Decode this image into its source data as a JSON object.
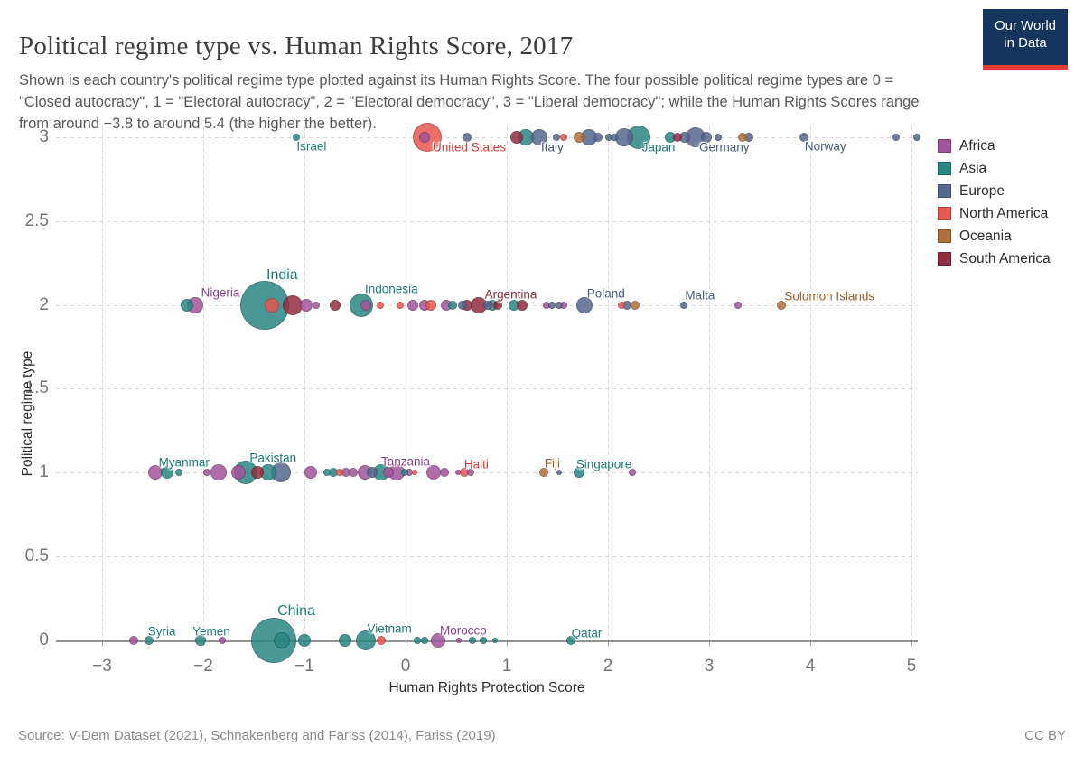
{
  "header": {
    "title": "Political regime type vs. Human Rights Score, 2017",
    "subtitle": "Shown is each country's political regime type plotted against its Human Rights Score. The four possible political regime types are 0 = \"Closed autocracy\", 1 = \"Electoral autocracy\", 2 = \"Electoral democracy\", 3 = \"Liberal democracy\"; while the Human Rights Scores range from around −3.8 to around 5.4 (the higher the better)."
  },
  "logo": {
    "line1": "Our World",
    "line2": "in Data"
  },
  "footer": {
    "source": "Source: V-Dem Dataset (2021), Schnakenberg and Fariss (2014), Fariss (2019)",
    "license": "CC BY"
  },
  "chart_data": {
    "type": "scatter",
    "title": "Political regime type vs. Human Rights Score, 2017",
    "xlabel": "Human Rights Protection Score",
    "ylabel": "Political regime type",
    "xlim": [
      -3.45,
      5.2
    ],
    "ylim": [
      0,
      3
    ],
    "x_ticks": [
      -3,
      -2,
      -1,
      0,
      1,
      2,
      3,
      4,
      5
    ],
    "y_ticks": [
      3,
      2.5,
      2,
      1.5,
      1,
      0.5,
      0
    ],
    "grid": true,
    "legend_position": "right",
    "y_meaning": {
      "0": "Closed autocracy",
      "1": "Electoral autocracy",
      "2": "Electoral democracy",
      "3": "Liberal democracy"
    },
    "series": [
      {
        "name": "Africa",
        "color": "#a2559c",
        "labelColor": "#8d4090",
        "points": [
          [
            0.19,
            3,
            6
          ],
          [
            -2.08,
            2,
            9
          ],
          [
            -0.98,
            2,
            7
          ],
          [
            -0.88,
            2,
            4
          ],
          [
            -0.39,
            2,
            6
          ],
          [
            0.07,
            2,
            6
          ],
          [
            0.19,
            2,
            6
          ],
          [
            0.4,
            2,
            6
          ],
          [
            1.39,
            2,
            4
          ],
          [
            1.56,
            2,
            4
          ],
          [
            3.29,
            2,
            4
          ],
          [
            -2.47,
            1,
            8
          ],
          [
            -1.96,
            1,
            4
          ],
          [
            -1.85,
            1,
            9
          ],
          [
            -1.65,
            1,
            8
          ],
          [
            -0.94,
            1,
            7
          ],
          [
            -0.59,
            1,
            5
          ],
          [
            -0.52,
            1,
            5
          ],
          [
            -0.4,
            1,
            8
          ],
          [
            -0.17,
            1,
            6
          ],
          [
            -0.09,
            1,
            9
          ],
          [
            0.04,
            1,
            4
          ],
          [
            0.28,
            1,
            8
          ],
          [
            0.38,
            1,
            5
          ],
          [
            0.52,
            1,
            3
          ],
          [
            0.64,
            1,
            4
          ],
          [
            2.24,
            1,
            4
          ],
          [
            -2.69,
            0,
            5
          ],
          [
            -1.81,
            0,
            4
          ],
          [
            0.32,
            0,
            8
          ],
          [
            0.53,
            0,
            3
          ]
        ]
      },
      {
        "name": "Asia",
        "color": "#2a8784",
        "labelColor": "#1d7c77",
        "points": [
          [
            -1.08,
            3,
            4
          ],
          [
            1.19,
            3,
            9
          ],
          [
            2.3,
            3,
            13
          ],
          [
            2.62,
            3,
            6
          ],
          [
            -2.16,
            2,
            7
          ],
          [
            -1.39,
            2,
            27
          ],
          [
            -0.44,
            2,
            13
          ],
          [
            0.46,
            2,
            5
          ],
          [
            0.86,
            2,
            6
          ],
          [
            1.07,
            2,
            6
          ],
          [
            -2.36,
            1,
            7
          ],
          [
            -2.24,
            1,
            4
          ],
          [
            -1.58,
            1,
            13
          ],
          [
            -1.36,
            1,
            9
          ],
          [
            -0.78,
            1,
            4
          ],
          [
            -0.71,
            1,
            5
          ],
          [
            -0.24,
            1,
            9
          ],
          [
            -0.01,
            1,
            4
          ],
          [
            1.71,
            1,
            6
          ],
          [
            -2.54,
            0,
            5
          ],
          [
            -2.03,
            0,
            6
          ],
          [
            -1.3,
            0,
            25
          ],
          [
            -1.22,
            0,
            9
          ],
          [
            -1.0,
            0,
            7
          ],
          [
            -0.6,
            0,
            7
          ],
          [
            -0.39,
            0,
            11
          ],
          [
            0.12,
            0,
            4
          ],
          [
            0.19,
            0,
            4
          ],
          [
            0.66,
            0,
            4
          ],
          [
            0.77,
            0,
            4
          ],
          [
            0.88,
            0,
            3
          ],
          [
            1.63,
            0,
            5
          ]
        ]
      },
      {
        "name": "Europe",
        "color": "#56678f",
        "labelColor": "#47597f",
        "points": [
          [
            0.61,
            3,
            5
          ],
          [
            1.32,
            3,
            9
          ],
          [
            1.49,
            3,
            4
          ],
          [
            1.81,
            3,
            9
          ],
          [
            1.9,
            3,
            5
          ],
          [
            2.01,
            3,
            4
          ],
          [
            2.06,
            3,
            4
          ],
          [
            2.16,
            3,
            10
          ],
          [
            2.76,
            3,
            6
          ],
          [
            2.87,
            3,
            11
          ],
          [
            2.97,
            3,
            6
          ],
          [
            3.09,
            3,
            4
          ],
          [
            3.39,
            3,
            5
          ],
          [
            3.94,
            3,
            5
          ],
          [
            4.85,
            3,
            4
          ],
          [
            5.05,
            3,
            4
          ],
          [
            0.56,
            2,
            5
          ],
          [
            0.81,
            2,
            5
          ],
          [
            1.45,
            2,
            4
          ],
          [
            1.52,
            2,
            4
          ],
          [
            1.77,
            2,
            9
          ],
          [
            2.19,
            2,
            5
          ],
          [
            2.75,
            2,
            4
          ],
          [
            -1.23,
            1,
            11
          ],
          [
            -0.33,
            1,
            6
          ],
          [
            1.52,
            1,
            3
          ]
        ]
      },
      {
        "name": "North America",
        "color": "#e8584f",
        "labelColor": "#d73a39",
        "points": [
          [
            0.21,
            3,
            16
          ],
          [
            1.56,
            3,
            4
          ],
          [
            -1.32,
            2,
            8
          ],
          [
            -0.25,
            2,
            4
          ],
          [
            -0.05,
            2,
            4
          ],
          [
            0.25,
            2,
            6
          ],
          [
            2.13,
            2,
            4
          ],
          [
            -0.65,
            1,
            4
          ],
          [
            0.09,
            1,
            3
          ],
          [
            0.58,
            1,
            5
          ],
          [
            -0.24,
            0,
            5
          ]
        ]
      },
      {
        "name": "Oceania",
        "color": "#b0703a",
        "labelColor": "#9c5f28",
        "points": [
          [
            1.71,
            3,
            6
          ],
          [
            3.33,
            3,
            5
          ],
          [
            2.27,
            2,
            5
          ],
          [
            3.71,
            2,
            5
          ],
          [
            1.37,
            1,
            5
          ]
        ]
      },
      {
        "name": "South America",
        "color": "#932d41",
        "labelColor": "#8c2a3c",
        "points": [
          [
            1.1,
            3,
            7
          ],
          [
            2.69,
            3,
            5
          ],
          [
            -1.12,
            2,
            11
          ],
          [
            -0.7,
            2,
            6
          ],
          [
            0.61,
            2,
            6
          ],
          [
            0.72,
            2,
            9
          ],
          [
            0.91,
            2,
            5
          ],
          [
            1.15,
            2,
            6
          ],
          [
            -1.46,
            1,
            7
          ]
        ]
      }
    ],
    "annotations": [
      {
        "text": "Israel",
        "x": -0.93,
        "y": 3,
        "dy": 10,
        "series": "Asia"
      },
      {
        "text": "United States",
        "x": 0.63,
        "y": 3,
        "dy": 11,
        "series": "North America"
      },
      {
        "text": "Italy",
        "x": 1.45,
        "y": 3,
        "dy": 11,
        "series": "Europe"
      },
      {
        "text": "Japan",
        "x": 2.5,
        "y": 3,
        "dy": 11,
        "series": "Asia"
      },
      {
        "text": "Germany",
        "x": 3.15,
        "y": 3,
        "dy": 11,
        "series": "Europe"
      },
      {
        "text": "Norway",
        "x": 4.15,
        "y": 3,
        "dy": 10,
        "series": "Europe"
      },
      {
        "text": "Nigeria",
        "x": -1.83,
        "y": 2,
        "dy": -14,
        "series": "Africa"
      },
      {
        "text": "India",
        "x": -1.22,
        "y": 2,
        "dy": -33,
        "series": "Asia",
        "size": 16
      },
      {
        "text": "Indonesia",
        "x": -0.14,
        "y": 2,
        "dy": -18,
        "series": "Asia"
      },
      {
        "text": "Argentina",
        "x": 1.04,
        "y": 2,
        "dy": -12,
        "series": "South America"
      },
      {
        "text": "Poland",
        "x": 1.98,
        "y": 2,
        "dy": -13,
        "series": "Europe"
      },
      {
        "text": "Malta",
        "x": 2.91,
        "y": 2,
        "dy": -11,
        "series": "Europe"
      },
      {
        "text": "Solomon Islands",
        "x": 4.19,
        "y": 2,
        "dy": -10,
        "series": "Oceania"
      },
      {
        "text": "Myanmar",
        "x": -2.19,
        "y": 1,
        "dy": -11,
        "series": "Asia"
      },
      {
        "text": "Pakistan",
        "x": -1.31,
        "y": 1,
        "dy": -16,
        "series": "Asia"
      },
      {
        "text": "Tanzania",
        "x": 0.0,
        "y": 1,
        "dy": -12,
        "series": "Africa"
      },
      {
        "text": "Haiti",
        "x": 0.7,
        "y": 1,
        "dy": -9,
        "series": "North America"
      },
      {
        "text": "Fiji",
        "x": 1.45,
        "y": 1,
        "dy": -10,
        "series": "Oceania"
      },
      {
        "text": "Singapore",
        "x": 1.96,
        "y": 1,
        "dy": -9,
        "series": "Asia"
      },
      {
        "text": "Syria",
        "x": -2.41,
        "y": 0,
        "dy": -10,
        "series": "Asia"
      },
      {
        "text": "Yemen",
        "x": -1.92,
        "y": 0,
        "dy": -10,
        "series": "Asia"
      },
      {
        "text": "China",
        "x": -1.08,
        "y": 0,
        "dy": -32,
        "series": "Asia",
        "size": 16
      },
      {
        "text": "Vietnam",
        "x": -0.16,
        "y": 0,
        "dy": -13,
        "series": "Asia"
      },
      {
        "text": "Morocco",
        "x": 0.57,
        "y": 0,
        "dy": -11,
        "series": "Africa"
      },
      {
        "text": "Qatar",
        "x": 1.79,
        "y": 0,
        "dy": -8,
        "series": "Asia"
      }
    ]
  }
}
